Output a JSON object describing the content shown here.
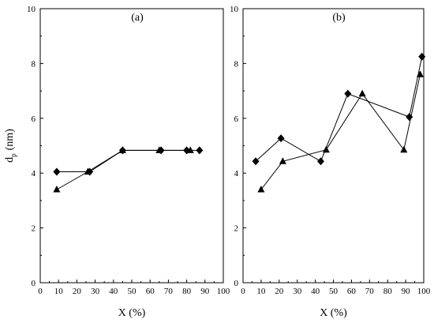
{
  "chart_data": [
    {
      "type": "line",
      "title": "(a)",
      "xlabel": "X (%)",
      "ylabel": "d",
      "ylabel_subscript": "p",
      "ylabel_unit": "(nm)",
      "xlim": [
        0,
        100
      ],
      "ylim": [
        0,
        10
      ],
      "xticks": [
        0,
        10,
        20,
        30,
        40,
        50,
        60,
        70,
        80,
        90,
        100
      ],
      "yticks": [
        0,
        2,
        4,
        6,
        8,
        10
      ],
      "grid": false,
      "series": [
        {
          "marker": "diamond",
          "x": [
            9,
            27,
            45,
            66,
            80,
            87
          ],
          "y": [
            4.05,
            4.05,
            4.83,
            4.83,
            4.83,
            4.83
          ]
        },
        {
          "marker": "triangle",
          "x": [
            9,
            26,
            45,
            65,
            82
          ],
          "y": [
            3.4,
            4.05,
            4.83,
            4.83,
            4.83
          ]
        }
      ]
    },
    {
      "type": "line",
      "title": "(b)",
      "xlabel": "X (%)",
      "xlim": [
        0,
        100
      ],
      "ylim": [
        0,
        10
      ],
      "xticks": [
        0,
        10,
        20,
        30,
        40,
        50,
        60,
        70,
        80,
        90,
        100
      ],
      "yticks": [
        0,
        2,
        4,
        6,
        8,
        10
      ],
      "grid": false,
      "series": [
        {
          "marker": "diamond",
          "x": [
            7,
            21,
            43,
            58,
            92,
            99
          ],
          "y": [
            4.43,
            5.27,
            4.43,
            6.9,
            6.05,
            8.25
          ]
        },
        {
          "marker": "triangle",
          "x": [
            10,
            22,
            46,
            66,
            89,
            98
          ],
          "y": [
            3.4,
            4.43,
            4.85,
            6.9,
            4.85,
            7.6
          ]
        }
      ]
    }
  ]
}
